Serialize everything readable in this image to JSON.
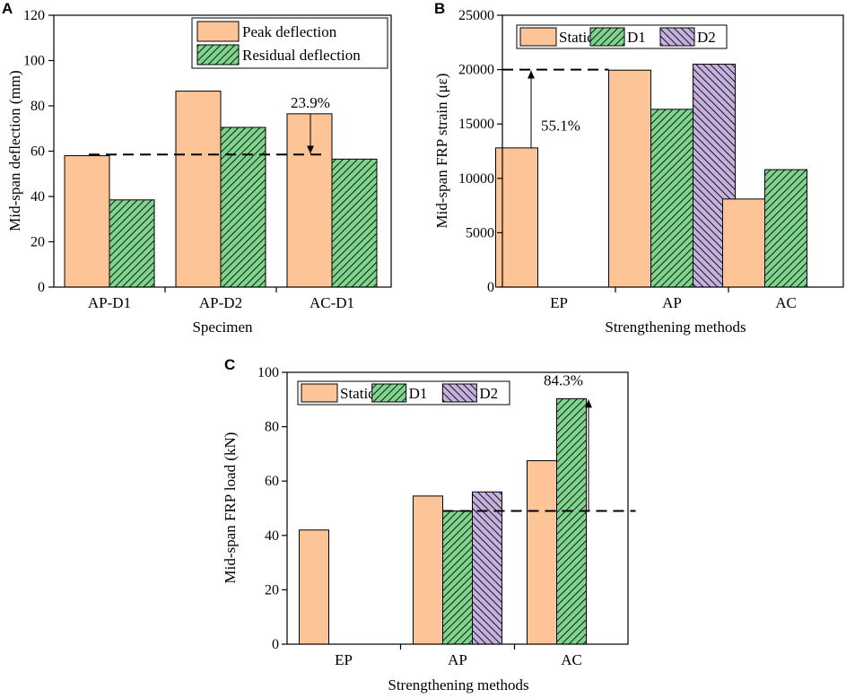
{
  "colors": {
    "peach": "#FDC597",
    "green": "#7ED58C",
    "purple": "#C6B0DF",
    "ink": "#000000"
  },
  "chart_data": [
    {
      "panel": "A",
      "type": "bar",
      "xlabel": "Specimen",
      "ylabel": "Mid-span deflection (mm)",
      "ylim": [
        0,
        120
      ],
      "yticks": [
        0,
        20,
        40,
        60,
        80,
        100,
        120
      ],
      "categories": [
        "AP-D1",
        "AP-D2",
        "AC-D1"
      ],
      "series": [
        {
          "name": "Peak deflection",
          "fill": "peach",
          "hatch": false,
          "values": [
            58,
            86.5,
            76.5
          ]
        },
        {
          "name": "Residual deflection",
          "fill": "green",
          "hatch": true,
          "values": [
            38.5,
            70.5,
            56.5
          ]
        }
      ],
      "legend_position": "top-right",
      "reference_line": {
        "value": 58.5,
        "from": "AP-D1",
        "to": "AC-D1"
      },
      "annotation": {
        "text": "23.9%",
        "category": "AC-D1",
        "arrow_from": 76.5,
        "arrow_to": 58.5
      }
    },
    {
      "panel": "B",
      "type": "bar",
      "xlabel": "Strengthening methods",
      "ylabel": "Mid-span FRP strain (με)",
      "ylim": [
        0,
        25000
      ],
      "yticks": [
        0,
        5000,
        10000,
        15000,
        20000,
        25000
      ],
      "categories": [
        "EP",
        "AP",
        "AC"
      ],
      "series": [
        {
          "name": "Static",
          "fill": "peach",
          "hatch": false,
          "values": [
            12800,
            19950,
            8100
          ]
        },
        {
          "name": "D1",
          "fill": "green",
          "hatch": true,
          "values": [
            null,
            16350,
            10800
          ]
        },
        {
          "name": "D2",
          "fill": "purple",
          "hatch": true,
          "values": [
            null,
            20500,
            null
          ]
        }
      ],
      "legend_position": "top",
      "reference_line": {
        "value": 20000,
        "from": "EP",
        "to": "AP"
      },
      "annotation": {
        "text": "55.1%",
        "category": "EP",
        "arrow_from": 12800,
        "arrow_to": 20000
      }
    },
    {
      "panel": "C",
      "type": "bar",
      "xlabel": "Strengthening methods",
      "ylabel": "Mid-span FRP load (kN)",
      "ylim": [
        0,
        100
      ],
      "yticks": [
        0,
        20,
        40,
        60,
        80,
        100
      ],
      "categories": [
        "EP",
        "AP",
        "AC"
      ],
      "series": [
        {
          "name": "Static",
          "fill": "peach",
          "hatch": false,
          "values": [
            42,
            54.5,
            67.5
          ]
        },
        {
          "name": "D1",
          "fill": "green",
          "hatch": true,
          "values": [
            null,
            49,
            90.3
          ]
        },
        {
          "name": "D2",
          "fill": "purple",
          "hatch": true,
          "values": [
            null,
            56,
            null
          ]
        }
      ],
      "legend_position": "top",
      "reference_line": {
        "value": 49,
        "from": "AP",
        "to": "AC"
      },
      "annotation": {
        "text": "84.3%",
        "category": "AC",
        "arrow_from": 49,
        "arrow_to": 90.3
      }
    }
  ]
}
